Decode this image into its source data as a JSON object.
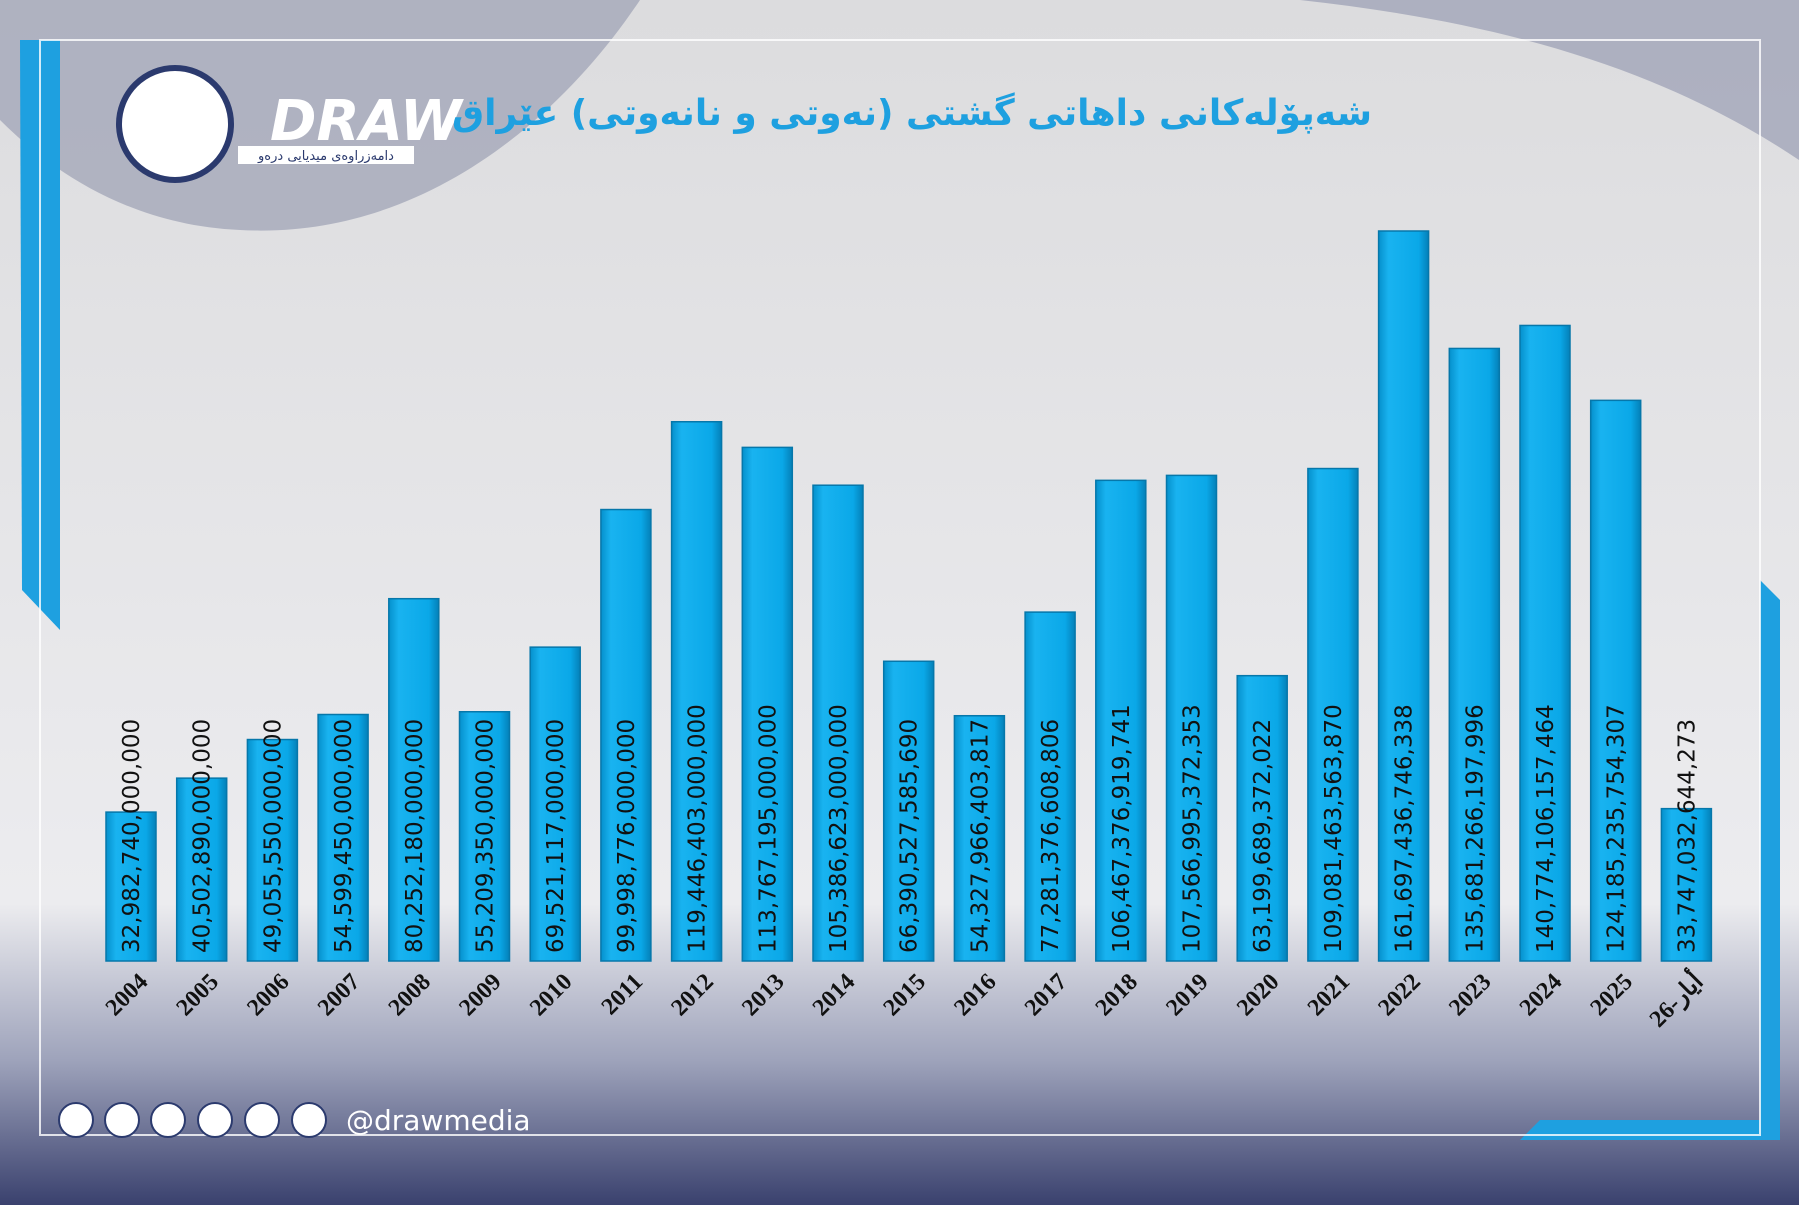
{
  "brand": {
    "name": "DRAW",
    "tagline": "دامەزراوەی میدیایی درەو",
    "handle": "@drawmedia"
  },
  "chart_data": {
    "type": "bar",
    "title": "شەپۆلەکانی داهاتی گشتی (نەوتی و نانەوتی) عێراق",
    "categories": [
      "2004",
      "2005",
      "2006",
      "2007",
      "2008",
      "2009",
      "2010",
      "2011",
      "2012",
      "2013",
      "2014",
      "2015",
      "2016",
      "2017",
      "2018",
      "2019",
      "2020",
      "2021",
      "2022",
      "2023",
      "2024",
      "2025",
      "أيار-26"
    ],
    "values": [
      32982740000000,
      40502890000000,
      49055550000000,
      54599450000000,
      80252180000000,
      55209350000000,
      69521117000000,
      99998776000000,
      119446403000000,
      113767195000000,
      105386623000000,
      66390527585690,
      54327966403817,
      77281376608806,
      106467376919741,
      107566995372353,
      63199689372022,
      109081463563870,
      161697436746338,
      135681266197996,
      140774106157464,
      124185235754307,
      33747032644273
    ],
    "value_labels": [
      "32,982,740,000,000",
      "40,502,890,000,000",
      "49,055,550,000,000",
      "54,599,450,000,000",
      "80,252,180,000,000",
      "55,209,350,000,000",
      "69,521,117,000,000",
      "99,998,776,000,000",
      "119,446,403,000,000",
      "113,767,195,000,000",
      "105,386,623,000,000",
      "66,390,527,585,690",
      "54,327,966,403,817",
      "77,281,376,608,806",
      "106,467,376,919,741",
      "107,566,995,372,353",
      "63,199,689,372,022",
      "109,081,463,563,870",
      "161,697,436,746,338",
      "135,681,266,197,996",
      "140,774,106,157,464",
      "124,185,235,754,307",
      "33,747,032,644,273"
    ],
    "color": "#0aa8e8"
  }
}
